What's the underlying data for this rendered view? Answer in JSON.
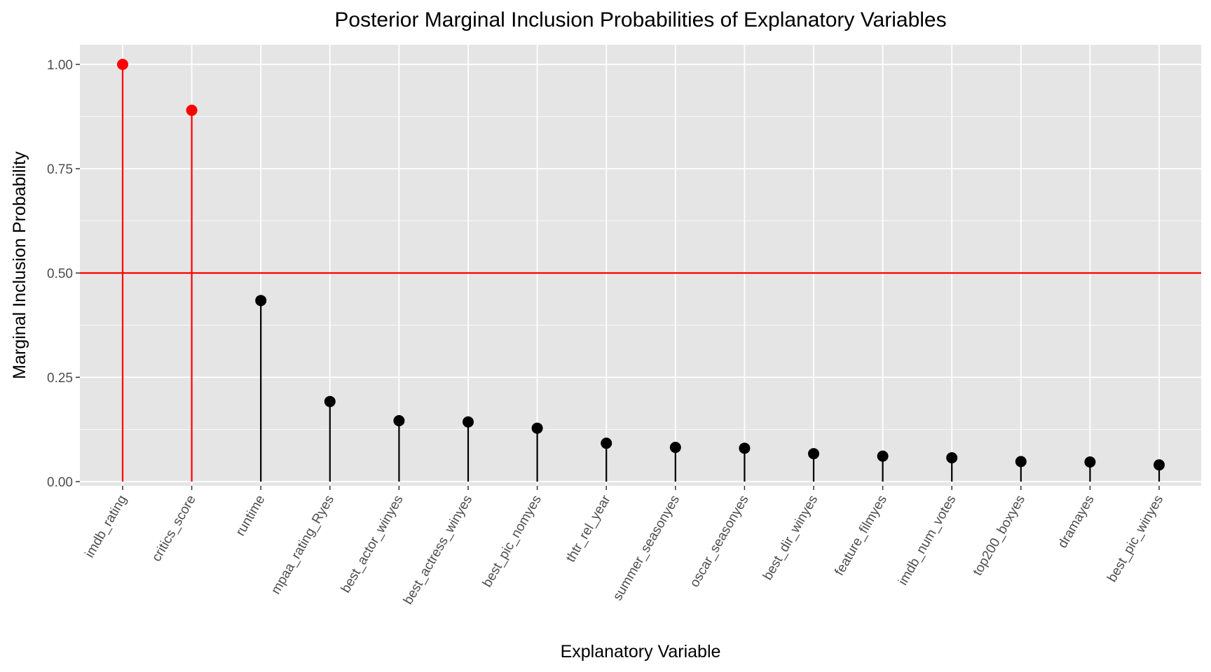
{
  "chart_data": {
    "type": "scatter",
    "style": "lollipop",
    "title": "Posterior Marginal Inclusion Probabilities of Explanatory Variables",
    "xlabel": "Explanatory Variable",
    "ylabel": "Marginal Inclusion Probability",
    "ylim": [
      0,
      1.05
    ],
    "y_ticks": [
      "0.00",
      "0.25",
      "0.50",
      "0.75",
      "1.00"
    ],
    "threshold": 0.5,
    "grid": true,
    "categories": [
      "imdb_rating",
      "critics_score",
      "runtime",
      "mpaa_rating_Ryes",
      "best_actor_winyes",
      "best_actress_winyes",
      "best_pic_nomyes",
      "thtr_rel_year",
      "summer_seasonyes",
      "oscar_seasonyes",
      "best_dir_winyes",
      "feature_filmyes",
      "imdb_num_votes",
      "top200_boxyes",
      "dramayes",
      "best_pic_winyes"
    ],
    "values": [
      1.0,
      0.89,
      0.434,
      0.192,
      0.146,
      0.143,
      0.128,
      0.092,
      0.082,
      0.08,
      0.067,
      0.061,
      0.057,
      0.048,
      0.047,
      0.04
    ],
    "colors": {
      "panel_background": "#e5e5e5",
      "grid": "#ffffff",
      "above_threshold": "#ff0000",
      "below_threshold": "#000000",
      "threshold_line": "#ff0000"
    }
  }
}
